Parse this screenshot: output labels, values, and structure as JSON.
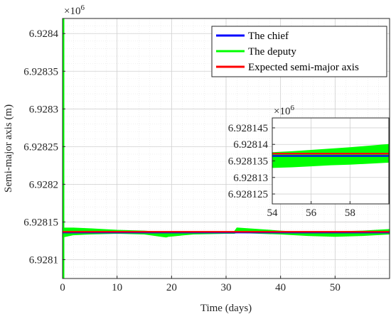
{
  "chart_data": [
    {
      "type": "line",
      "xlabel": "Time (days)",
      "ylabel": "Semi-major axis (m)",
      "exponent_base": "×10",
      "exponent_power": "6",
      "xlim": [
        0,
        60
      ],
      "ylim": [
        6.928075,
        6.92842
      ],
      "x_ticks": [
        0,
        10,
        20,
        30,
        40,
        50
      ],
      "x_tick_labels": [
        "0",
        "10",
        "20",
        "30",
        "40",
        "50"
      ],
      "y_ticks": [
        6.9281,
        6.92815,
        6.9282,
        6.92825,
        6.9283,
        6.92835,
        6.9284
      ],
      "y_tick_labels": [
        "6.9281",
        "6.92815",
        "6.9282",
        "6.92825",
        "6.9283",
        "6.92835",
        "6.9284"
      ],
      "grid": true,
      "minor_grid": true,
      "legend_position": "top-right",
      "series": [
        {
          "name": "The chief",
          "color": "#0000ff",
          "x": [
            0,
            60
          ],
          "y": [
            6.928136,
            6.928136
          ]
        },
        {
          "name": "The deputy",
          "color": "#00ff00",
          "band_x": [
            0,
            2,
            5,
            10,
            15,
            19,
            19.5,
            24,
            30,
            31.5,
            32,
            40,
            45,
            50,
            55,
            60
          ],
          "band_upper": [
            6.928142,
            6.928142,
            6.928141,
            6.928139,
            6.928138,
            6.928136,
            6.928136,
            6.928136,
            6.928137,
            6.928137,
            6.928142,
            6.928138,
            6.928136,
            6.928137,
            6.928138,
            6.92814
          ],
          "band_lower": [
            6.92813,
            6.928133,
            6.928134,
            6.928135,
            6.928134,
            6.92813,
            6.928131,
            6.928134,
            6.928135,
            6.928135,
            6.928136,
            6.928134,
            6.928132,
            6.928131,
            6.928132,
            6.928134
          ],
          "spike_x": 0,
          "spike_range": [
            6.928075,
            6.92842
          ]
        },
        {
          "name": "Expected semi-major axis",
          "color": "#ff0000",
          "x": [
            0,
            60
          ],
          "y": [
            6.928137,
            6.928137
          ]
        }
      ]
    },
    {
      "type": "line",
      "role": "inset",
      "exponent_base": "×10",
      "exponent_power": "6",
      "xlim": [
        54,
        60
      ],
      "ylim": [
        6.928122,
        6.928148
      ],
      "x_ticks": [
        54,
        56,
        58
      ],
      "x_tick_labels": [
        "54",
        "56",
        "58"
      ],
      "y_ticks": [
        6.928125,
        6.92813,
        6.928135,
        6.92814,
        6.928145
      ],
      "y_tick_labels": [
        "6.928125",
        "6.92813",
        "6.928135",
        "6.92814",
        "6.928145"
      ],
      "grid": true,
      "series": [
        {
          "name": "The chief",
          "color": "#0000ff",
          "x": [
            54,
            60
          ],
          "y": [
            6.9281365,
            6.9281365
          ]
        },
        {
          "name": "The deputy",
          "color": "#00ff00",
          "band_x": [
            54,
            55,
            56,
            57,
            58,
            59,
            60
          ],
          "band_upper": [
            6.9281375,
            6.9281378,
            6.9281382,
            6.9281386,
            6.928139,
            6.9281395,
            6.92814
          ],
          "band_lower": [
            6.928133,
            6.9281332,
            6.9281335,
            6.9281338,
            6.928134,
            6.9281343,
            6.9281346
          ]
        },
        {
          "name": "Expected semi-major axis",
          "color": "#ff0000",
          "x": [
            54,
            60
          ],
          "y": [
            6.9281372,
            6.9281372
          ]
        }
      ]
    }
  ]
}
